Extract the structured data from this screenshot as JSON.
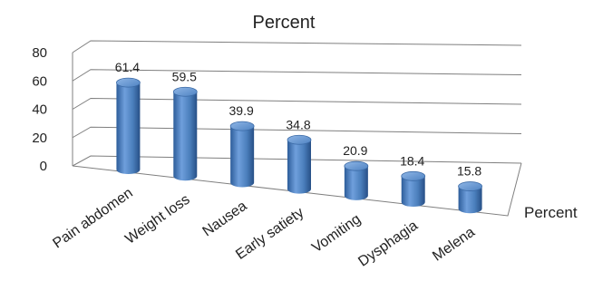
{
  "chart_data": {
    "type": "bar",
    "title": "Percent",
    "categories": [
      "Pain abdomen",
      "Weight loss",
      "Nausea",
      "Early satiety",
      "Vomiting",
      "Dysphagia",
      "Melena"
    ],
    "series": [
      {
        "name": "Percent",
        "values": [
          61.4,
          59.5,
          39.9,
          34.8,
          20.9,
          18.4,
          15.8
        ]
      }
    ],
    "ylim": [
      0,
      80
    ],
    "yticks": [
      0,
      20,
      40,
      60,
      80
    ],
    "grid": true,
    "bar_color": "#4a7ebb"
  }
}
